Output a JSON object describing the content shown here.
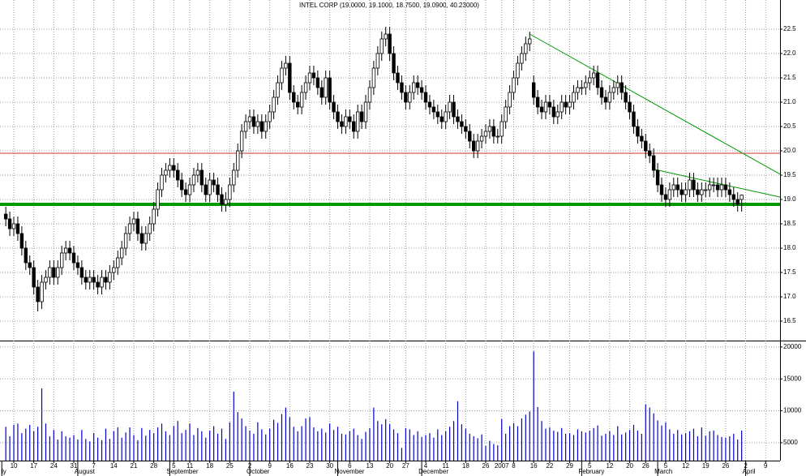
{
  "chart_data": {
    "type": "candlestick",
    "title": "INTEL CORP (19.0000, 19.1000, 18.7500, 19.0900, 40.23000)",
    "x": [
      0,
      1,
      2,
      3,
      4,
      5,
      6,
      7,
      8,
      9,
      10,
      11,
      12,
      13,
      14,
      15,
      16,
      17,
      18,
      19,
      20,
      21,
      22,
      23,
      24,
      25,
      26,
      27,
      28,
      29,
      30,
      31,
      32,
      33,
      34,
      35,
      36,
      37,
      38,
      39,
      40,
      41,
      42,
      43,
      44,
      45,
      46,
      47,
      48,
      49,
      50,
      51,
      52,
      53,
      54,
      55,
      56,
      57,
      58,
      59,
      60,
      61,
      62,
      63,
      64,
      65,
      66,
      67,
      68,
      69,
      70,
      71,
      72,
      73,
      74,
      75,
      76,
      77,
      78,
      79,
      80,
      81,
      82,
      83,
      84,
      85,
      86,
      87,
      88,
      89,
      90,
      91,
      92,
      93,
      94,
      95,
      96,
      97,
      98,
      99,
      100,
      101,
      102,
      103,
      104,
      105,
      106,
      107,
      108,
      109,
      110,
      111,
      112,
      113,
      114,
      115,
      116,
      117,
      118,
      119,
      120,
      121,
      122,
      123,
      124,
      125,
      126,
      127,
      128,
      129,
      130,
      131,
      132,
      133,
      134,
      135,
      136,
      137,
      138,
      139,
      140,
      141,
      142,
      143,
      144,
      145,
      146,
      147,
      148,
      149,
      150,
      151,
      152,
      153,
      154,
      155,
      156,
      157,
      158,
      159,
      160,
      161,
      162,
      163,
      164,
      165,
      166,
      167,
      168,
      169,
      170,
      171,
      172,
      173,
      174,
      175,
      176,
      177,
      178,
      179,
      180,
      181,
      182,
      183,
      184
    ],
    "open": [
      18.7,
      18.6,
      18.4,
      18.5,
      18.3,
      18.0,
      17.7,
      17.6,
      17.2,
      16.9,
      17.3,
      17.4,
      17.6,
      17.4,
      17.6,
      17.9,
      18.0,
      17.9,
      17.7,
      17.6,
      17.4,
      17.3,
      17.4,
      17.3,
      17.2,
      17.4,
      17.3,
      17.5,
      17.6,
      17.8,
      18.0,
      18.3,
      18.5,
      18.6,
      18.3,
      18.1,
      18.3,
      18.5,
      18.8,
      19.2,
      19.5,
      19.6,
      19.7,
      19.6,
      19.4,
      19.2,
      19.1,
      19.3,
      19.5,
      19.6,
      19.3,
      19.1,
      19.4,
      19.3,
      19.1,
      18.9,
      19.0,
      19.3,
      19.6,
      20.0,
      20.4,
      20.6,
      20.7,
      20.5,
      20.6,
      20.4,
      20.6,
      20.8,
      21.1,
      21.4,
      21.7,
      21.8,
      21.2,
      21.0,
      20.9,
      21.2,
      21.4,
      21.6,
      21.5,
      21.3,
      21.1,
      21.5,
      21.0,
      20.8,
      20.6,
      20.5,
      20.7,
      20.6,
      20.4,
      20.8,
      20.6,
      21.0,
      21.3,
      21.7,
      22.0,
      22.3,
      22.4,
      22.0,
      21.6,
      21.4,
      21.2,
      21.0,
      21.2,
      21.4,
      21.3,
      21.2,
      21.0,
      20.9,
      20.8,
      20.7,
      20.6,
      20.8,
      21.0,
      20.7,
      20.6,
      20.5,
      20.4,
      20.2,
      20.0,
      20.2,
      20.3,
      20.4,
      20.5,
      20.3,
      20.3,
      20.6,
      20.9,
      21.2,
      21.5,
      21.8,
      22.0,
      22.2,
      21.4,
      21.1,
      20.9,
      20.8,
      21.0,
      20.9,
      20.7,
      20.8,
      21.0,
      20.9,
      21.0,
      21.2,
      21.3,
      21.3,
      21.4,
      21.5,
      21.6,
      21.3,
      21.1,
      21.0,
      21.2,
      21.3,
      21.4,
      21.2,
      21.0,
      20.8,
      20.5,
      20.3,
      20.2,
      20.0,
      19.9,
      19.6,
      19.3,
      19.1,
      19.0,
      19.2,
      19.3,
      19.2,
      19.1,
      19.2,
      19.4,
      19.2,
      19.1,
      19.2,
      19.2,
      19.3,
      19.3,
      19.2,
      19.3,
      19.2,
      19.1,
      19.0,
      19.0
    ],
    "high": [
      18.85,
      18.75,
      18.65,
      18.65,
      18.45,
      18.15,
      17.85,
      17.75,
      17.35,
      17.45,
      17.55,
      17.75,
      17.75,
      17.75,
      18.05,
      18.15,
      18.15,
      18.05,
      17.85,
      17.75,
      17.55,
      17.55,
      17.55,
      17.45,
      17.55,
      17.55,
      17.65,
      17.75,
      17.95,
      18.15,
      18.45,
      18.65,
      18.75,
      18.75,
      18.45,
      18.45,
      18.65,
      18.95,
      19.35,
      19.65,
      19.75,
      19.85,
      19.85,
      19.75,
      19.55,
      19.35,
      19.45,
      19.65,
      19.75,
      19.75,
      19.45,
      19.55,
      19.55,
      19.45,
      19.25,
      19.15,
      19.45,
      19.75,
      20.15,
      20.55,
      20.75,
      20.85,
      20.85,
      20.75,
      20.75,
      20.75,
      20.95,
      21.25,
      21.55,
      21.85,
      21.95,
      21.95,
      21.35,
      21.15,
      21.35,
      21.55,
      21.75,
      21.75,
      21.65,
      21.45,
      21.65,
      21.65,
      21.15,
      20.95,
      20.75,
      20.85,
      20.85,
      20.75,
      20.95,
      20.95,
      21.15,
      21.45,
      21.85,
      22.15,
      22.45,
      22.55,
      22.55,
      22.15,
      21.75,
      21.55,
      21.35,
      21.35,
      21.55,
      21.55,
      21.45,
      21.35,
      21.15,
      21.05,
      20.95,
      20.85,
      20.95,
      21.15,
      21.15,
      20.85,
      20.75,
      20.65,
      20.55,
      20.35,
      20.35,
      20.45,
      20.55,
      20.65,
      20.65,
      20.45,
      20.75,
      21.05,
      21.35,
      21.65,
      21.95,
      22.15,
      22.35,
      22.45,
      21.55,
      21.25,
      21.05,
      21.15,
      21.15,
      21.05,
      20.95,
      21.15,
      21.15,
      21.15,
      21.35,
      21.45,
      21.45,
      21.55,
      21.65,
      21.75,
      21.75,
      21.45,
      21.25,
      21.35,
      21.45,
      21.55,
      21.55,
      21.35,
      21.15,
      20.95,
      20.65,
      20.45,
      20.35,
      20.15,
      20.05,
      19.75,
      19.45,
      19.25,
      19.35,
      19.45,
      19.45,
      19.35,
      19.35,
      19.55,
      19.55,
      19.35,
      19.35,
      19.35,
      19.45,
      19.45,
      19.45,
      19.45,
      19.45,
      19.35,
      19.25,
      19.15,
      19.1
    ],
    "low": [
      18.45,
      18.25,
      18.25,
      18.15,
      17.85,
      17.55,
      17.45,
      17.05,
      16.7,
      16.75,
      17.15,
      17.25,
      17.25,
      17.25,
      17.45,
      17.75,
      17.75,
      17.55,
      17.45,
      17.25,
      17.15,
      17.15,
      17.15,
      17.05,
      17.05,
      17.15,
      17.15,
      17.35,
      17.45,
      17.65,
      17.85,
      18.15,
      18.35,
      18.15,
      17.95,
      17.95,
      18.15,
      18.35,
      18.65,
      19.05,
      19.35,
      19.45,
      19.45,
      19.25,
      19.05,
      18.95,
      18.95,
      19.15,
      19.35,
      19.15,
      18.95,
      18.95,
      19.15,
      18.95,
      18.75,
      18.75,
      18.85,
      19.15,
      19.45,
      19.85,
      20.25,
      20.45,
      20.35,
      20.35,
      20.25,
      20.25,
      20.45,
      20.65,
      20.95,
      21.25,
      21.55,
      21.05,
      20.85,
      20.75,
      20.75,
      21.05,
      21.25,
      21.35,
      21.15,
      20.95,
      20.95,
      20.85,
      20.65,
      20.45,
      20.35,
      20.35,
      20.45,
      20.25,
      20.25,
      20.45,
      20.45,
      20.85,
      21.15,
      21.55,
      21.85,
      22.15,
      21.85,
      21.45,
      21.25,
      21.05,
      20.85,
      20.85,
      21.05,
      21.15,
      21.05,
      20.85,
      20.75,
      20.65,
      20.55,
      20.45,
      20.45,
      20.65,
      20.55,
      20.45,
      20.35,
      20.25,
      20.05,
      19.85,
      19.85,
      20.05,
      20.15,
      20.25,
      20.15,
      20.15,
      20.15,
      20.45,
      20.75,
      21.05,
      21.35,
      21.65,
      21.85,
      22.05,
      20.95,
      20.75,
      20.65,
      20.65,
      20.75,
      20.55,
      20.55,
      20.65,
      20.75,
      20.75,
      20.85,
      21.05,
      21.15,
      21.15,
      21.25,
      21.35,
      21.15,
      20.95,
      20.85,
      20.85,
      21.05,
      21.15,
      21.05,
      20.85,
      20.65,
      20.35,
      20.15,
      20.05,
      19.85,
      19.75,
      19.45,
      19.15,
      18.95,
      18.85,
      18.85,
      19.05,
      19.05,
      18.95,
      18.95,
      19.05,
      19.05,
      18.95,
      18.95,
      19.05,
      19.05,
      19.15,
      19.05,
      19.05,
      19.05,
      18.95,
      18.85,
      18.75,
      18.75
    ],
    "close": [
      18.6,
      18.4,
      18.5,
      18.3,
      18.0,
      17.7,
      17.6,
      17.2,
      16.9,
      17.3,
      17.4,
      17.6,
      17.4,
      17.6,
      17.9,
      18.0,
      17.9,
      17.7,
      17.6,
      17.4,
      17.3,
      17.4,
      17.3,
      17.2,
      17.4,
      17.3,
      17.5,
      17.6,
      17.8,
      18.0,
      18.3,
      18.5,
      18.6,
      18.3,
      18.1,
      18.3,
      18.5,
      18.8,
      19.2,
      19.5,
      19.6,
      19.7,
      19.6,
      19.4,
      19.2,
      19.1,
      19.3,
      19.5,
      19.6,
      19.3,
      19.1,
      19.4,
      19.3,
      19.1,
      18.9,
      19.0,
      19.3,
      19.6,
      20.0,
      20.4,
      20.6,
      20.7,
      20.5,
      20.6,
      20.4,
      20.6,
      20.8,
      21.1,
      21.4,
      21.7,
      21.8,
      21.2,
      21.0,
      20.9,
      21.2,
      21.4,
      21.6,
      21.5,
      21.3,
      21.1,
      21.5,
      21.0,
      20.8,
      20.6,
      20.5,
      20.7,
      20.6,
      20.4,
      20.8,
      20.6,
      21.0,
      21.3,
      21.7,
      22.0,
      22.3,
      22.4,
      22.0,
      21.6,
      21.4,
      21.2,
      21.0,
      21.2,
      21.4,
      21.3,
      21.2,
      21.0,
      20.9,
      20.8,
      20.7,
      20.6,
      20.8,
      21.0,
      20.7,
      20.6,
      20.5,
      20.4,
      20.2,
      20.0,
      20.2,
      20.3,
      20.4,
      20.5,
      20.3,
      20.3,
      20.6,
      20.9,
      21.2,
      21.5,
      21.8,
      22.0,
      22.2,
      22.3,
      21.1,
      20.9,
      20.8,
      21.0,
      20.9,
      20.7,
      20.8,
      21.0,
      20.9,
      21.0,
      21.2,
      21.3,
      21.3,
      21.4,
      21.5,
      21.6,
      21.3,
      21.1,
      21.0,
      21.2,
      21.3,
      21.4,
      21.2,
      21.0,
      20.8,
      20.5,
      20.3,
      20.2,
      20.0,
      19.9,
      19.6,
      19.3,
      19.1,
      19.0,
      19.2,
      19.3,
      19.2,
      19.1,
      19.2,
      19.4,
      19.2,
      19.1,
      19.2,
      19.2,
      19.3,
      19.3,
      19.2,
      19.3,
      19.2,
      19.1,
      19.0,
      18.9,
      19.09
    ],
    "volume": [
      7500,
      6000,
      7800,
      8000,
      6500,
      7200,
      7800,
      6800,
      7500,
      13500,
      8000,
      6000,
      7000,
      5500,
      6800,
      6000,
      5800,
      6200,
      5500,
      7000,
      5600,
      5200,
      6500,
      5800,
      5400,
      7200,
      5600,
      6800,
      7400,
      5800,
      6600,
      7400,
      6200,
      5400,
      7300,
      6100,
      7000,
      6500,
      7400,
      8000,
      6800,
      6200,
      7600,
      8400,
      6500,
      7000,
      8000,
      6200,
      7300,
      6800,
      5800,
      6900,
      7600,
      6400,
      7200,
      5600,
      8200,
      13000,
      9800,
      8800,
      7600,
      6900,
      6400,
      8200,
      7100,
      6300,
      7200,
      8600,
      8100,
      9500,
      10500,
      9000,
      7500,
      6800,
      7600,
      8800,
      9000,
      7400,
      6800,
      7200,
      6600,
      8000,
      7000,
      7500,
      6400,
      6300,
      6800,
      7200,
      6200,
      5600,
      6700,
      7300,
      10500,
      8400,
      7900,
      8700,
      7900,
      7100,
      6500,
      4200,
      7300,
      7100,
      6200,
      6800,
      5900,
      6200,
      6500,
      5800,
      7100,
      6200,
      6800,
      7500,
      8400,
      11500,
      7900,
      7200,
      6400,
      6000,
      5700,
      6300,
      4500,
      5300,
      4800,
      4600,
      8700,
      6400,
      7600,
      8100,
      7600,
      8800,
      9400,
      9900,
      19300,
      10600,
      8400,
      7200,
      7400,
      6900,
      6700,
      7300,
      6400,
      6500,
      6200,
      7100,
      6800,
      6600,
      6900,
      7300,
      7700,
      6100,
      6400,
      6800,
      6200,
      7600,
      6300,
      6600,
      7000,
      7800,
      6900,
      6400,
      11000,
      10500,
      9600,
      8500,
      7700,
      8200,
      7100,
      6400,
      7000,
      6300,
      6500,
      6800,
      7200,
      6000,
      7400,
      6100,
      6800,
      6900,
      6200,
      5900,
      5800,
      6000,
      6400,
      5500,
      6900
    ],
    "xlim": [
      -1.45,
      193.6
    ],
    "xticks": [
      {
        "value": 2,
        "label": "10"
      },
      {
        "value": 7,
        "label": "17"
      },
      {
        "value": 12,
        "label": "24"
      },
      {
        "value": 17,
        "label": "31"
      },
      {
        "value": 22,
        "label": "7"
      },
      {
        "value": 27,
        "label": "14"
      },
      {
        "value": 32,
        "label": "21"
      },
      {
        "value": 37,
        "label": "28"
      },
      {
        "value": 42,
        "label": "5"
      },
      {
        "value": 46,
        "label": "11"
      },
      {
        "value": 51,
        "label": "18"
      },
      {
        "value": 56,
        "label": "25"
      },
      {
        "value": 61,
        "label": "2"
      },
      {
        "value": 66,
        "label": "9"
      },
      {
        "value": 71,
        "label": "16"
      },
      {
        "value": 76,
        "label": "23"
      },
      {
        "value": 81,
        "label": "30"
      },
      {
        "value": 86,
        "label": "6"
      },
      {
        "value": 91,
        "label": "13"
      },
      {
        "value": 96,
        "label": "20"
      },
      {
        "value": 100,
        "label": "27"
      },
      {
        "value": 105,
        "label": "4"
      },
      {
        "value": 110,
        "label": "11"
      },
      {
        "value": 115,
        "label": "18"
      },
      {
        "value": 120,
        "label": "26"
      },
      {
        "value": 124,
        "label": "2007"
      },
      {
        "value": 127,
        "label": "8"
      },
      {
        "value": 132,
        "label": "16"
      },
      {
        "value": 136,
        "label": "22"
      },
      {
        "value": 141,
        "label": "29"
      },
      {
        "value": 146,
        "label": "5"
      },
      {
        "value": 151,
        "label": "12"
      },
      {
        "value": 156,
        "label": "20"
      },
      {
        "value": 160,
        "label": "26"
      },
      {
        "value": 165,
        "label": "5"
      },
      {
        "value": 170,
        "label": "12"
      },
      {
        "value": 175,
        "label": "19"
      },
      {
        "value": 180,
        "label": "26"
      },
      {
        "value": 185,
        "label": "2"
      },
      {
        "value": 190,
        "label": "9"
      }
    ],
    "month_ticks": [
      {
        "value": -1,
        "label": "ly"
      },
      {
        "value": 18,
        "label": "August"
      },
      {
        "value": 41,
        "label": "September"
      },
      {
        "value": 61,
        "label": "October"
      },
      {
        "value": 83,
        "label": "November"
      },
      {
        "value": 104,
        "label": "December"
      },
      {
        "value": 144,
        "label": "February"
      },
      {
        "value": 163,
        "label": "March"
      },
      {
        "value": 185,
        "label": "April"
      }
    ],
    "ylim": [
      16.1,
      23.1
    ],
    "yticks": [
      16.5,
      {
        "value": 17,
        "label": "17.0"
      },
      17.5,
      {
        "value": 18,
        "label": "18.0"
      },
      18.5,
      {
        "value": 19,
        "label": "19.0"
      },
      19.5,
      {
        "value": 20,
        "label": "20.0"
      },
      20.5,
      {
        "value": 21,
        "label": "21.0"
      },
      21.5,
      {
        "value": 22,
        "label": "22.0"
      },
      22.5
    ],
    "volume_ylim": [
      2200,
      21000
    ],
    "volume_yticks": [
      5000,
      10000,
      15000,
      20000
    ],
    "up_color": "#ffffff",
    "down_color": "#000000",
    "volume_color": "#0000cc",
    "hlines": [
      {
        "value": 19.95,
        "color": "#cc3333"
      },
      {
        "value": 18.9,
        "color": "#009900"
      }
    ],
    "trendlines": [
      {
        "x": [
          131,
          193.6
        ],
        "y": [
          22.4,
          19.52
        ],
        "color": "#009900"
      },
      {
        "x": [
          162,
          193.6
        ],
        "y": [
          19.62,
          19.05
        ],
        "color": "#009900"
      }
    ],
    "grid": true
  }
}
